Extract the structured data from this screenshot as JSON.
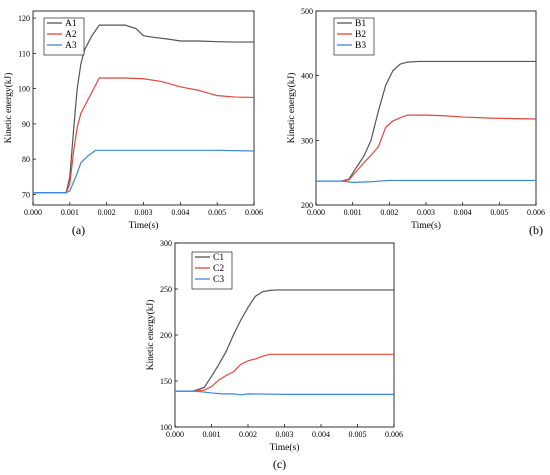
{
  "chart_data": [
    {
      "type": "line",
      "panel_label": "(a)",
      "xlabel": "Time(s)",
      "ylabel": "Kinetic energy(kJ)",
      "xlim": [
        0,
        0.006
      ],
      "ylim": [
        67,
        122
      ],
      "x_ticks": [
        "0.000",
        "0.001",
        "0.002",
        "0.003",
        "0.004",
        "0.005",
        "0.006"
      ],
      "y_ticks": [
        "70",
        "80",
        "90",
        "100",
        "110",
        "120"
      ],
      "legend_position": "top-left",
      "series": [
        {
          "name": "A1",
          "color": "#555555",
          "x": [
            0,
            0.0007,
            0.0009,
            0.001,
            0.0011,
            0.0012,
            0.0013,
            0.0014,
            0.0016,
            0.0018,
            0.002,
            0.0025,
            0.0028,
            0.003,
            0.0033,
            0.0037,
            0.004,
            0.0045,
            0.005,
            0.0055,
            0.006
          ],
          "y": [
            70.5,
            70.5,
            70.5,
            75,
            88,
            100,
            107,
            111,
            115,
            118,
            118,
            118,
            117,
            115,
            114.5,
            114,
            113.5,
            113.5,
            113.3,
            113.2,
            113.2
          ]
        },
        {
          "name": "A2",
          "color": "#e8453c",
          "x": [
            0,
            0.0007,
            0.0009,
            0.001,
            0.0011,
            0.0012,
            0.0013,
            0.0014,
            0.0016,
            0.0018,
            0.002,
            0.0025,
            0.003,
            0.0035,
            0.004,
            0.0045,
            0.005,
            0.0055,
            0.006
          ],
          "y": [
            70.5,
            70.5,
            70.5,
            73,
            82,
            89,
            93,
            95,
            99,
            103,
            103,
            103,
            102.8,
            102,
            100.5,
            99.5,
            98,
            97.6,
            97.5
          ]
        },
        {
          "name": "A3",
          "color": "#3a87e0",
          "x": [
            0,
            0.0007,
            0.0009,
            0.001,
            0.0011,
            0.0012,
            0.0013,
            0.0015,
            0.0017,
            0.002,
            0.003,
            0.004,
            0.005,
            0.006
          ],
          "y": [
            70.5,
            70.5,
            70.5,
            71,
            73.5,
            76,
            79,
            81,
            82.5,
            82.5,
            82.5,
            82.5,
            82.5,
            82.3
          ]
        }
      ]
    },
    {
      "type": "line",
      "panel_label": "(b)",
      "xlabel": "Time(s)",
      "ylabel": "Kinetic energy(kJ)",
      "xlim": [
        0,
        0.006
      ],
      "ylim": [
        200,
        500
      ],
      "x_ticks": [
        "0.000",
        "0.001",
        "0.002",
        "0.003",
        "0.004",
        "0.005",
        "0.006"
      ],
      "y_ticks": [
        "200",
        "300",
        "400",
        "500"
      ],
      "legend_position": "top-left",
      "series": [
        {
          "name": "B1",
          "color": "#555555",
          "x": [
            0,
            0.0007,
            0.0009,
            0.0011,
            0.0013,
            0.0015,
            0.0017,
            0.0019,
            0.0021,
            0.0023,
            0.0025,
            0.0028,
            0.003,
            0.004,
            0.005,
            0.006
          ],
          "y": [
            237,
            237,
            240,
            258,
            275,
            300,
            345,
            385,
            408,
            418,
            421,
            422,
            422,
            422,
            422,
            422
          ]
        },
        {
          "name": "B2",
          "color": "#e8453c",
          "x": [
            0,
            0.0007,
            0.0009,
            0.0011,
            0.0013,
            0.0015,
            0.0017,
            0.0019,
            0.0021,
            0.0023,
            0.0025,
            0.003,
            0.0035,
            0.004,
            0.005,
            0.006
          ],
          "y": [
            237,
            237,
            239,
            252,
            265,
            277,
            290,
            320,
            330,
            335,
            339,
            339,
            338,
            336,
            334,
            333
          ]
        },
        {
          "name": "B3",
          "color": "#3a87e0",
          "x": [
            0,
            0.0007,
            0.001,
            0.0015,
            0.002,
            0.0025,
            0.003,
            0.004,
            0.005,
            0.006
          ],
          "y": [
            237,
            237,
            235,
            236,
            238,
            238,
            238,
            238,
            238,
            238
          ]
        }
      ]
    },
    {
      "type": "line",
      "panel_label": "(c)",
      "xlabel": "Time(s)",
      "ylabel": "Kinetic energy(kJ)",
      "xlim": [
        0,
        0.006
      ],
      "ylim": [
        100,
        300
      ],
      "x_ticks": [
        "0.000",
        "0.001",
        "0.002",
        "0.003",
        "0.004",
        "0.005",
        "0.006"
      ],
      "y_ticks": [
        "100",
        "150",
        "200",
        "250",
        "300"
      ],
      "legend_position": "top-left",
      "series": [
        {
          "name": "C1",
          "color": "#555555",
          "x": [
            0,
            0.0005,
            0.0008,
            0.001,
            0.0012,
            0.0014,
            0.0016,
            0.0018,
            0.002,
            0.0022,
            0.0024,
            0.0026,
            0.0028,
            0.003,
            0.004,
            0.005,
            0.006
          ],
          "y": [
            139,
            139,
            143,
            155,
            168,
            182,
            200,
            216,
            230,
            242,
            247,
            248.5,
            249,
            249,
            249,
            249,
            249
          ]
        },
        {
          "name": "C2",
          "color": "#e8453c",
          "x": [
            0,
            0.0005,
            0.0008,
            0.001,
            0.0012,
            0.0014,
            0.0016,
            0.0018,
            0.002,
            0.0022,
            0.0024,
            0.0026,
            0.003,
            0.004,
            0.005,
            0.006
          ],
          "y": [
            139,
            139,
            140,
            144,
            151,
            156,
            160,
            168,
            172,
            174,
            177,
            179,
            179,
            179,
            179,
            179
          ]
        },
        {
          "name": "C3",
          "color": "#3a87e0",
          "x": [
            0,
            0.0005,
            0.0008,
            0.001,
            0.0013,
            0.0016,
            0.0018,
            0.002,
            0.003,
            0.004,
            0.005,
            0.006
          ],
          "y": [
            139,
            139,
            138,
            137,
            136,
            136,
            135,
            136,
            135.5,
            135.5,
            135.5,
            135.5
          ]
        }
      ]
    }
  ]
}
